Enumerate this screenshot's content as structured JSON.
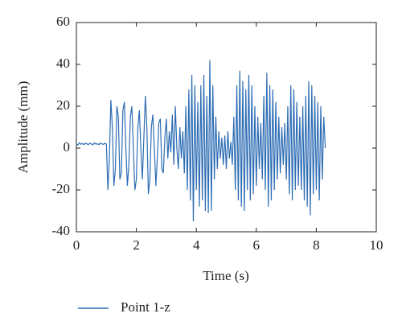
{
  "chart_data": {
    "type": "line",
    "xlabel": "Time (s)",
    "ylabel": "Amplitude (mm)",
    "xlim": [
      0,
      10
    ],
    "xticks": [
      0,
      2,
      4,
      6,
      8,
      10
    ],
    "ylim": [
      -40,
      60
    ],
    "yticks": [
      -40,
      -20,
      0,
      20,
      40,
      60
    ],
    "legend": "bottom",
    "x": [
      0,
      0.05,
      0.1,
      0.15,
      0.2,
      0.25,
      0.3,
      0.35,
      0.4,
      0.45,
      0.5,
      0.55,
      0.6,
      0.65,
      0.7,
      0.75,
      0.8,
      0.85,
      0.9,
      0.95,
      1.0,
      1.05,
      1.1,
      1.15,
      1.2,
      1.25,
      1.3,
      1.35,
      1.4,
      1.45,
      1.5,
      1.55,
      1.6,
      1.65,
      1.7,
      1.75,
      1.8,
      1.85,
      1.9,
      1.95,
      2.0,
      2.05,
      2.1,
      2.15,
      2.2,
      2.25,
      2.3,
      2.35,
      2.4,
      2.45,
      2.5,
      2.55,
      2.6,
      2.65,
      2.7,
      2.75,
      2.8,
      2.85,
      2.9,
      2.95,
      3.0,
      3.05,
      3.1,
      3.15,
      3.2,
      3.25,
      3.3,
      3.35,
      3.4,
      3.45,
      3.5,
      3.55,
      3.6,
      3.65,
      3.7,
      3.75,
      3.8,
      3.85,
      3.9,
      3.95,
      4.0,
      4.05,
      4.1,
      4.15,
      4.2,
      4.25,
      4.3,
      4.35,
      4.4,
      4.45,
      4.5,
      4.55,
      4.6,
      4.65,
      4.7,
      4.75,
      4.8,
      4.85,
      4.9,
      4.95,
      5.0,
      5.05,
      5.1,
      5.15,
      5.2,
      5.25,
      5.3,
      5.35,
      5.4,
      5.45,
      5.5,
      5.55,
      5.6,
      5.65,
      5.7,
      5.75,
      5.8,
      5.85,
      5.9,
      5.95,
      6.0,
      6.05,
      6.1,
      6.15,
      6.2,
      6.25,
      6.3,
      6.35,
      6.4,
      6.45,
      6.5,
      6.55,
      6.6,
      6.65,
      6.7,
      6.75,
      6.8,
      6.85,
      6.9,
      6.95,
      7.0,
      7.05,
      7.1,
      7.15,
      7.2,
      7.25,
      7.3,
      7.35,
      7.4,
      7.45,
      7.5,
      7.55,
      7.6,
      7.65,
      7.7,
      7.75,
      7.8,
      7.85,
      7.9,
      7.95,
      8.0,
      8.05,
      8.1,
      8.15,
      8.2,
      8.25,
      8.3
    ],
    "series": [
      {
        "name": "Point 1-z",
        "color": "#2e6db4",
        "values": [
          2,
          1.5,
          2.5,
          1.8,
          2.2,
          1.6,
          2.4,
          2,
          1.7,
          2.3,
          2,
          1.5,
          2.5,
          1.9,
          2.1,
          1.6,
          2.4,
          2,
          1.8,
          2.2,
          2,
          -20,
          -5,
          23,
          10,
          -18,
          -10,
          20,
          15,
          -15,
          -12,
          18,
          22,
          0,
          -18,
          -8,
          15,
          20,
          0,
          -20,
          -15,
          10,
          18,
          0,
          -15,
          5,
          25,
          10,
          -22,
          -15,
          10,
          16,
          0,
          -18,
          -5,
          12,
          14,
          -10,
          -12,
          5,
          14,
          -5,
          8,
          -2,
          16,
          -8,
          20,
          0,
          -10,
          10,
          -5,
          8,
          -12,
          20,
          -20,
          28,
          -25,
          35,
          -35,
          30,
          -20,
          22,
          -28,
          30,
          -25,
          35,
          -30,
          25,
          -31,
          42,
          -30,
          30,
          -15,
          15,
          -10,
          8,
          -5,
          5,
          -8,
          6,
          -10,
          8,
          -5,
          3,
          -8,
          15,
          -20,
          30,
          -25,
          37,
          -28,
          32,
          -30,
          28,
          -20,
          35,
          -25,
          30,
          -22,
          20,
          -18,
          15,
          -10,
          12,
          -15,
          25,
          -20,
          36,
          -28,
          30,
          -25,
          28,
          -20,
          22,
          -15,
          15,
          -12,
          10,
          -8,
          12,
          -15,
          20,
          -22,
          30,
          -25,
          28,
          -20,
          22,
          -18,
          15,
          -20,
          20,
          -25,
          25,
          -28,
          32,
          -32,
          30,
          -22,
          25,
          -20,
          22,
          -25,
          20,
          -15,
          15,
          0
        ]
      }
    ]
  }
}
